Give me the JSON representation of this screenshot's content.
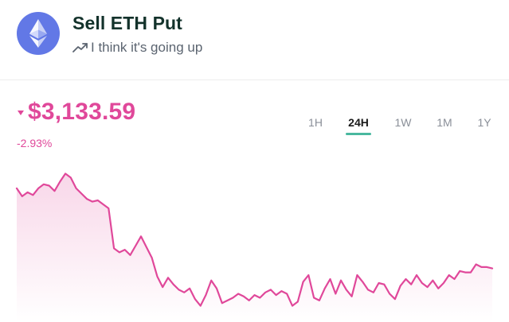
{
  "header": {
    "title": "Sell ETH Put",
    "subtitle": "I think it's going up",
    "logo_icon": "ethereum-logo-icon",
    "trend_icon": "trending-up-icon"
  },
  "price": {
    "value": "$3,133.59",
    "change": "-2.93%",
    "direction_icon": "caret-down-icon",
    "color": "#e0489a"
  },
  "ranges": {
    "items": [
      {
        "label": "1H",
        "active": false
      },
      {
        "label": "24H",
        "active": true
      },
      {
        "label": "1W",
        "active": false
      },
      {
        "label": "1M",
        "active": false
      },
      {
        "label": "1Y",
        "active": false
      }
    ],
    "accent_color": "#49b89f"
  },
  "chart_data": {
    "type": "area",
    "series": [
      {
        "values": [
          3196,
          3190,
          3193,
          3191,
          3196,
          3199,
          3198,
          3194,
          3201,
          3207,
          3204,
          3196,
          3192,
          3188,
          3186,
          3187,
          3184,
          3181,
          3151,
          3148,
          3150,
          3146,
          3153,
          3160,
          3152,
          3144,
          3130,
          3122,
          3129,
          3124,
          3120,
          3118,
          3121,
          3113,
          3108,
          3116,
          3127,
          3121,
          3110,
          3112,
          3114,
          3117,
          3115,
          3112,
          3116,
          3114,
          3118,
          3120,
          3116,
          3119,
          3117,
          3108,
          3111,
          3126,
          3131,
          3114,
          3112,
          3121,
          3128,
          3117,
          3127,
          3120,
          3115,
          3131,
          3126,
          3120,
          3118,
          3125,
          3124,
          3117,
          3113,
          3123,
          3128,
          3124,
          3131,
          3125,
          3122,
          3127,
          3121,
          3125,
          3131,
          3128,
          3134,
          3133,
          3133,
          3139,
          3137,
          3137,
          3136
        ]
      }
    ],
    "xlabel": "",
    "ylabel": "",
    "ylim": [
      3100,
      3212
    ],
    "grid": false,
    "line_color": "#e0489a"
  }
}
